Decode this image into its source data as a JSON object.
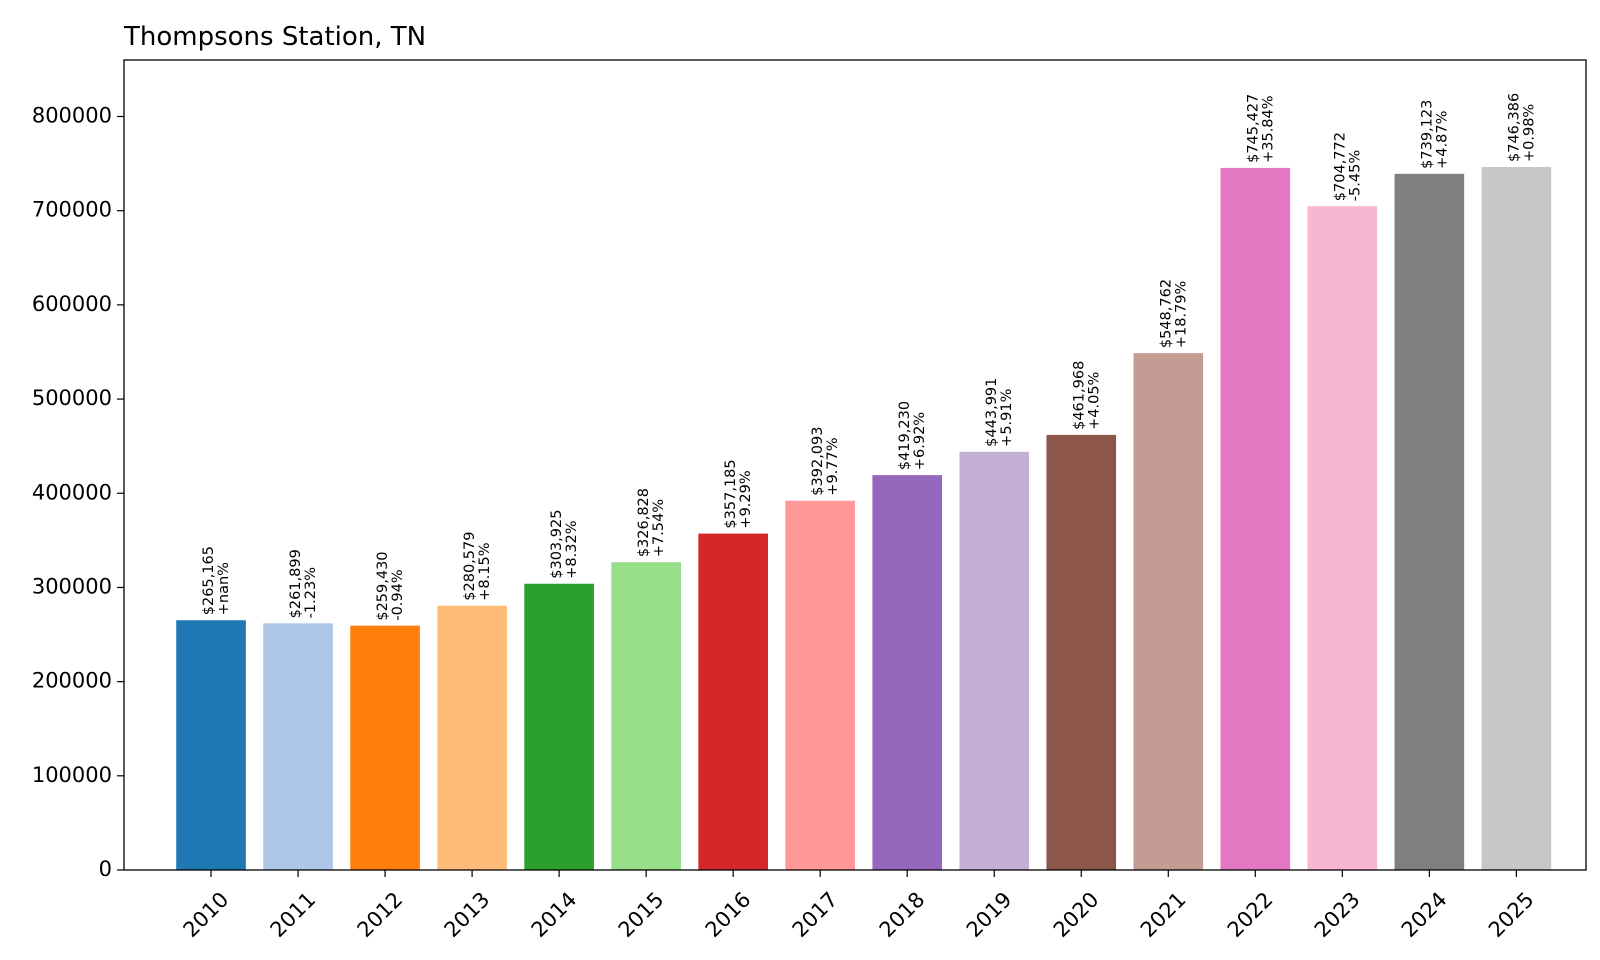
{
  "chart_data": {
    "type": "bar",
    "title": "Thompsons Station, TN",
    "xlabel": "",
    "ylabel": "",
    "ylim": [
      0,
      860000
    ],
    "yticks": [
      0,
      100000,
      200000,
      300000,
      400000,
      500000,
      600000,
      700000,
      800000
    ],
    "ytick_labels": [
      "0",
      "100000",
      "200000",
      "300000",
      "400000",
      "500000",
      "600000",
      "700000",
      "800000"
    ],
    "grid": false,
    "categories": [
      "2010",
      "2011",
      "2012",
      "2013",
      "2014",
      "2015",
      "2016",
      "2017",
      "2018",
      "2019",
      "2020",
      "2021",
      "2022",
      "2023",
      "2024",
      "2025"
    ],
    "values": [
      265165,
      261899,
      259430,
      280579,
      303925,
      326828,
      357185,
      392093,
      419230,
      443991,
      461968,
      548762,
      745427,
      704772,
      739123,
      746386
    ],
    "value_labels": [
      "$265,165",
      "$261,899",
      "$259,430",
      "$280,579",
      "$303,925",
      "$326,828",
      "$357,185",
      "$392,093",
      "$419,230",
      "$443,991",
      "$461,968",
      "$548,762",
      "$745,427",
      "$704,772",
      "$739,123",
      "$746,386"
    ],
    "change_labels": [
      "+nan%",
      "-1.23%",
      "-0.94%",
      "+8.15%",
      "+8.32%",
      "+7.54%",
      "+9.29%",
      "+9.77%",
      "+6.92%",
      "+5.91%",
      "+4.05%",
      "+18.79%",
      "+35.84%",
      "-5.45%",
      "+4.87%",
      "+0.98%"
    ],
    "colors": [
      "#1f77b4",
      "#aec7e8",
      "#ff7f0e",
      "#ffbb78",
      "#2ca02c",
      "#98df8a",
      "#d62728",
      "#ff9896",
      "#9467bd",
      "#c5b0d5",
      "#8c564b",
      "#c49c94",
      "#e377c2",
      "#f7b6d2",
      "#7f7f7f",
      "#c7c7c7"
    ]
  }
}
